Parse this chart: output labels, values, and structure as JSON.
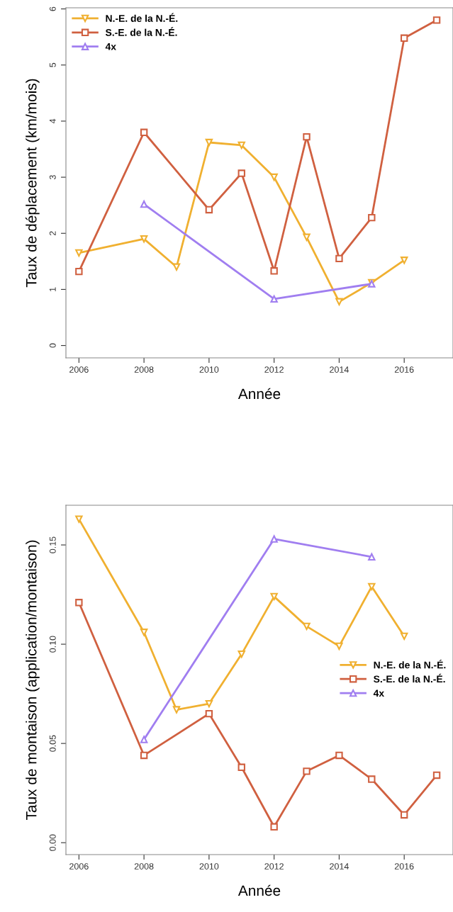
{
  "chart_data": [
    {
      "type": "line",
      "xlabel": "Année",
      "ylabel": "Taux de déplacement (km/mois)",
      "xlim": [
        2005.6,
        2017.5
      ],
      "ylim": [
        -0.22,
        6.02
      ],
      "xticks": [
        2006,
        2008,
        2010,
        2012,
        2014,
        2016
      ],
      "yticks": [
        0,
        1,
        2,
        3,
        4,
        5,
        6
      ],
      "grid": false,
      "legend": "top left",
      "series": [
        {
          "name": "N.-E. de la N.-É.",
          "color": "#f0b030",
          "marker": "triangle_down",
          "x": [
            2006,
            2008,
            2009,
            2010,
            2011,
            2012,
            2013,
            2014,
            2015,
            2016
          ],
          "values": [
            1.65,
            1.9,
            1.4,
            3.62,
            3.57,
            3.0,
            1.93,
            0.78,
            1.12,
            1.52
          ]
        },
        {
          "name": "S.-E. de la N.-É.",
          "color": "#d06040",
          "marker": "square",
          "x": [
            2006,
            2008,
            2010,
            2011,
            2012,
            2013,
            2014,
            2015,
            2016,
            2017
          ],
          "values": [
            1.32,
            3.8,
            2.42,
            3.07,
            1.33,
            3.72,
            1.55,
            2.28,
            5.48,
            5.8
          ]
        },
        {
          "name": "4x",
          "color": "#a07ef0",
          "marker": "triangle",
          "x": [
            2008,
            2012,
            2015
          ],
          "values": [
            2.52,
            0.83,
            1.1
          ]
        }
      ]
    },
    {
      "type": "line",
      "xlabel": "Année",
      "ylabel": "Taux de montaison (application/montaison)",
      "xlim": [
        2005.6,
        2017.5
      ],
      "ylim": [
        -0.006,
        0.17
      ],
      "xticks": [
        2006,
        2008,
        2010,
        2012,
        2014,
        2016
      ],
      "yticks": [
        {
          "value": 0,
          "label": "0.00"
        },
        {
          "value": 0.05,
          "label": "0.05"
        },
        {
          "value": 0.1,
          "label": "0.10"
        },
        {
          "value": 0.15,
          "label": "0.15"
        }
      ],
      "grid": false,
      "legend": "center right",
      "series": [
        {
          "name": "N.-E. de la N.-É.",
          "color": "#f0b030",
          "marker": "triangle_down",
          "x": [
            2006,
            2008,
            2009,
            2010,
            2011,
            2012,
            2013,
            2014,
            2015,
            2016
          ],
          "values": [
            0.163,
            0.106,
            0.067,
            0.07,
            0.095,
            0.124,
            0.109,
            0.099,
            0.129,
            0.104
          ]
        },
        {
          "name": "S.-E. de la N.-É.",
          "color": "#d06040",
          "marker": "square",
          "x": [
            2006,
            2008,
            2010,
            2011,
            2012,
            2013,
            2014,
            2015,
            2016,
            2017
          ],
          "values": [
            0.121,
            0.044,
            0.065,
            0.038,
            0.008,
            0.036,
            0.044,
            0.032,
            0.014,
            0.034
          ]
        },
        {
          "name": "4x",
          "color": "#a07ef0",
          "marker": "triangle",
          "x": [
            2008,
            2012,
            2015
          ],
          "values": [
            0.052,
            0.153,
            0.144
          ]
        }
      ]
    }
  ]
}
